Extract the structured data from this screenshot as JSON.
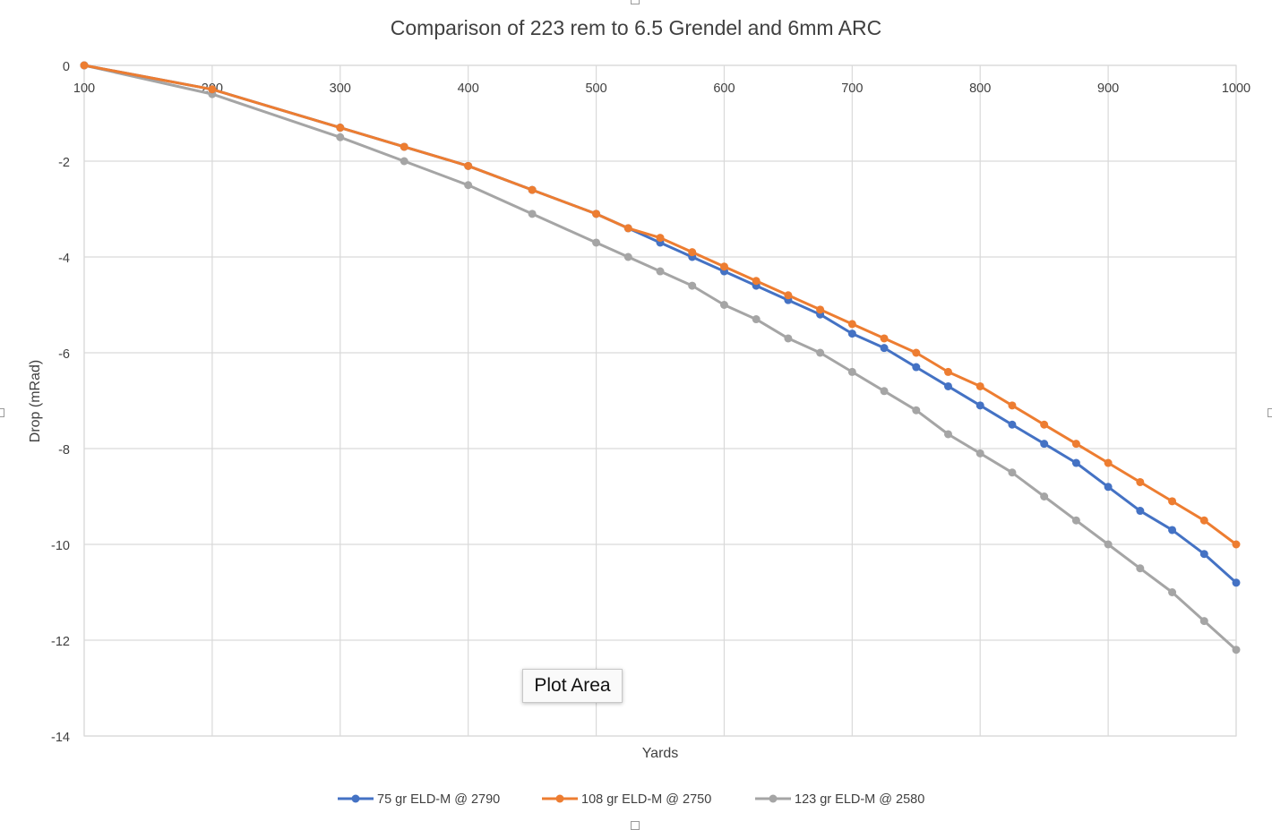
{
  "chart_data": {
    "type": "line",
    "title": "Comparison of 223 rem to 6.5 Grendel and 6mm ARC",
    "xlabel": "Yards",
    "ylabel": "Drop (mRad)",
    "xlim": [
      100,
      1000
    ],
    "ylim": [
      -14,
      0
    ],
    "x_ticks": [
      100,
      200,
      300,
      400,
      500,
      600,
      700,
      800,
      900,
      1000
    ],
    "y_ticks": [
      0,
      -2,
      -4,
      -6,
      -8,
      -10,
      -12,
      -14
    ],
    "grid": true,
    "legend_position": "bottom",
    "series": [
      {
        "name": "75 gr ELD-M @ 2790",
        "color": "#4472c4",
        "points": [
          [
            100,
            0
          ],
          [
            200,
            -0.5
          ],
          [
            300,
            -1.3
          ],
          [
            350,
            -1.7
          ],
          [
            400,
            -2.1
          ],
          [
            450,
            -2.6
          ],
          [
            500,
            -3.1
          ],
          [
            525,
            -3.4
          ],
          [
            550,
            -3.7
          ],
          [
            575,
            -4.0
          ],
          [
            600,
            -4.3
          ],
          [
            625,
            -4.6
          ],
          [
            650,
            -4.9
          ],
          [
            675,
            -5.2
          ],
          [
            700,
            -5.6
          ],
          [
            725,
            -5.9
          ],
          [
            750,
            -6.3
          ],
          [
            775,
            -6.7
          ],
          [
            800,
            -7.1
          ],
          [
            825,
            -7.5
          ],
          [
            850,
            -7.9
          ],
          [
            875,
            -8.3
          ],
          [
            900,
            -8.8
          ],
          [
            925,
            -9.3
          ],
          [
            950,
            -9.7
          ],
          [
            975,
            -10.2
          ],
          [
            1000,
            -10.8
          ]
        ]
      },
      {
        "name": "108 gr ELD-M @ 2750",
        "color": "#ed7d31",
        "points": [
          [
            100,
            0
          ],
          [
            200,
            -0.5
          ],
          [
            300,
            -1.3
          ],
          [
            350,
            -1.7
          ],
          [
            400,
            -2.1
          ],
          [
            450,
            -2.6
          ],
          [
            500,
            -3.1
          ],
          [
            525,
            -3.4
          ],
          [
            550,
            -3.6
          ],
          [
            575,
            -3.9
          ],
          [
            600,
            -4.2
          ],
          [
            625,
            -4.5
          ],
          [
            650,
            -4.8
          ],
          [
            675,
            -5.1
          ],
          [
            700,
            -5.4
          ],
          [
            725,
            -5.7
          ],
          [
            750,
            -6.0
          ],
          [
            775,
            -6.4
          ],
          [
            800,
            -6.7
          ],
          [
            825,
            -7.1
          ],
          [
            850,
            -7.5
          ],
          [
            875,
            -7.9
          ],
          [
            900,
            -8.3
          ],
          [
            925,
            -8.7
          ],
          [
            950,
            -9.1
          ],
          [
            975,
            -9.5
          ],
          [
            1000,
            -10.0
          ]
        ]
      },
      {
        "name": "123 gr ELD-M @ 2580",
        "color": "#a5a5a5",
        "points": [
          [
            100,
            0
          ],
          [
            200,
            -0.6
          ],
          [
            300,
            -1.5
          ],
          [
            350,
            -2.0
          ],
          [
            400,
            -2.5
          ],
          [
            450,
            -3.1
          ],
          [
            500,
            -3.7
          ],
          [
            525,
            -4.0
          ],
          [
            550,
            -4.3
          ],
          [
            575,
            -4.6
          ],
          [
            600,
            -5.0
          ],
          [
            625,
            -5.3
          ],
          [
            650,
            -5.7
          ],
          [
            675,
            -6.0
          ],
          [
            700,
            -6.4
          ],
          [
            725,
            -6.8
          ],
          [
            750,
            -7.2
          ],
          [
            775,
            -7.7
          ],
          [
            800,
            -8.1
          ],
          [
            825,
            -8.5
          ],
          [
            850,
            -9.0
          ],
          [
            875,
            -9.5
          ],
          [
            900,
            -10.0
          ],
          [
            925,
            -10.5
          ],
          [
            950,
            -11.0
          ],
          [
            975,
            -11.6
          ],
          [
            1000,
            -12.2
          ]
        ]
      }
    ]
  },
  "tooltip": {
    "text": "Plot Area"
  }
}
